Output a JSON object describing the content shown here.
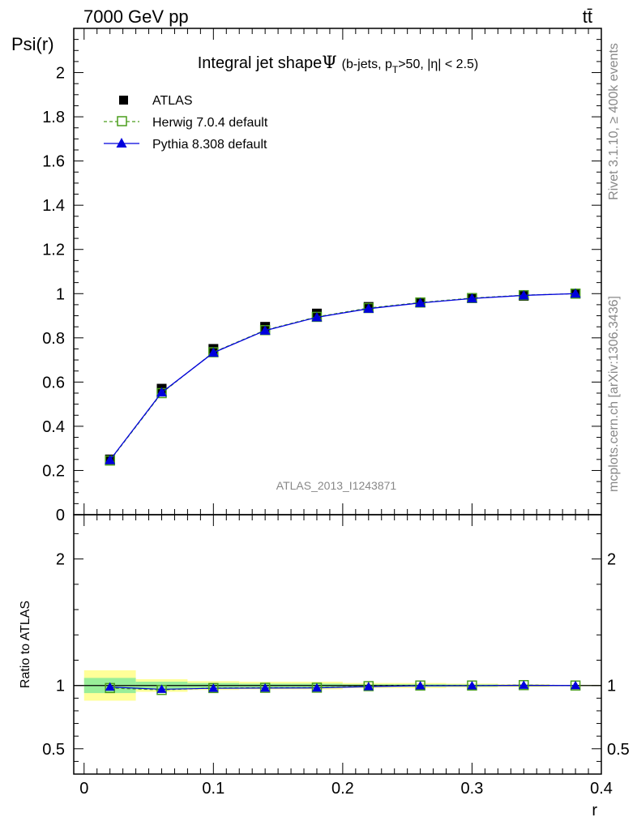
{
  "header": {
    "left": "7000 GeV pp",
    "right": "tt̄"
  },
  "side_labels": {
    "rivet": "Rivet 3.1.10, ≥ 400k events",
    "mcplots": "mcplots.cern.ch [arXiv:1306.3436]"
  },
  "chart_data": [
    {
      "type": "line",
      "panel": "main",
      "title_main": "Integral jet shape",
      "title_symbol": "Ψ",
      "title_detail_pre": "(b-jets, p",
      "title_detail_sub": "T",
      "title_detail_post": ">50, |η| < 2.5)",
      "ylabel": "Psi(r)",
      "watermark": "ATLAS_2013_I1243871",
      "ylim": [
        0,
        2.2
      ],
      "xlim": [
        -0.008,
        0.4
      ],
      "y_ticks": [
        "0",
        "0.2",
        "0.4",
        "0.6",
        "0.8",
        "1",
        "1.2",
        "1.4",
        "1.6",
        "1.8",
        "2"
      ],
      "x": [
        0.02,
        0.06,
        0.1,
        0.14,
        0.18,
        0.22,
        0.26,
        0.3,
        0.34,
        0.38
      ],
      "series": [
        {
          "name": "ATLAS",
          "marker": "square-filled",
          "color": "#000000",
          "values": [
            0.25,
            0.57,
            0.75,
            0.85,
            0.91,
            0.94,
            0.96,
            0.98,
            0.99,
            1.0
          ]
        },
        {
          "name": "Herwig 7.0.4 default",
          "marker": "square-open",
          "color": "#4a9e1c",
          "dashed": true,
          "values": [
            0.245,
            0.55,
            0.735,
            0.835,
            0.895,
            0.935,
            0.96,
            0.98,
            0.993,
            1.0
          ]
        },
        {
          "name": "Pythia 8.308 default",
          "marker": "triangle",
          "color": "#0000dd",
          "values": [
            0.247,
            0.553,
            0.733,
            0.833,
            0.893,
            0.932,
            0.958,
            0.978,
            0.992,
            1.0
          ]
        }
      ]
    },
    {
      "type": "line",
      "panel": "ratio",
      "ylabel": "Ratio to ATLAS",
      "xlabel": "r",
      "ylim": [
        0.3,
        2.35
      ],
      "y_ticks": [
        "0.5",
        "1",
        "2"
      ],
      "x_ticks": [
        "0",
        "0.1",
        "0.2",
        "0.3",
        "0.4"
      ],
      "bins": [
        [
          0.0,
          0.04
        ],
        [
          0.04,
          0.08
        ],
        [
          0.08,
          0.12
        ],
        [
          0.12,
          0.16
        ],
        [
          0.16,
          0.2
        ],
        [
          0.2,
          0.24
        ],
        [
          0.24,
          0.28
        ],
        [
          0.28,
          0.32
        ],
        [
          0.32,
          0.36
        ],
        [
          0.36,
          0.4
        ]
      ],
      "band_yellow": [
        0.12,
        0.05,
        0.035,
        0.03,
        0.03,
        0.02,
        0.02,
        0.015,
        0.01,
        0.005
      ],
      "band_green": [
        0.06,
        0.03,
        0.02,
        0.015,
        0.015,
        0.01,
        0.01,
        0.008,
        0.005,
        0.003
      ],
      "x": [
        0.02,
        0.06,
        0.1,
        0.14,
        0.18,
        0.22,
        0.26,
        0.3,
        0.34,
        0.38
      ],
      "series": [
        {
          "name": "Herwig 7.0.4 default",
          "values": [
            0.98,
            0.965,
            0.98,
            0.982,
            0.983,
            0.995,
            1.0,
            1.0,
            1.003,
            1.0
          ]
        },
        {
          "name": "Pythia 8.308 default",
          "values": [
            0.988,
            0.97,
            0.978,
            0.98,
            0.981,
            0.991,
            0.998,
            0.998,
            1.002,
            1.0
          ]
        }
      ]
    }
  ]
}
